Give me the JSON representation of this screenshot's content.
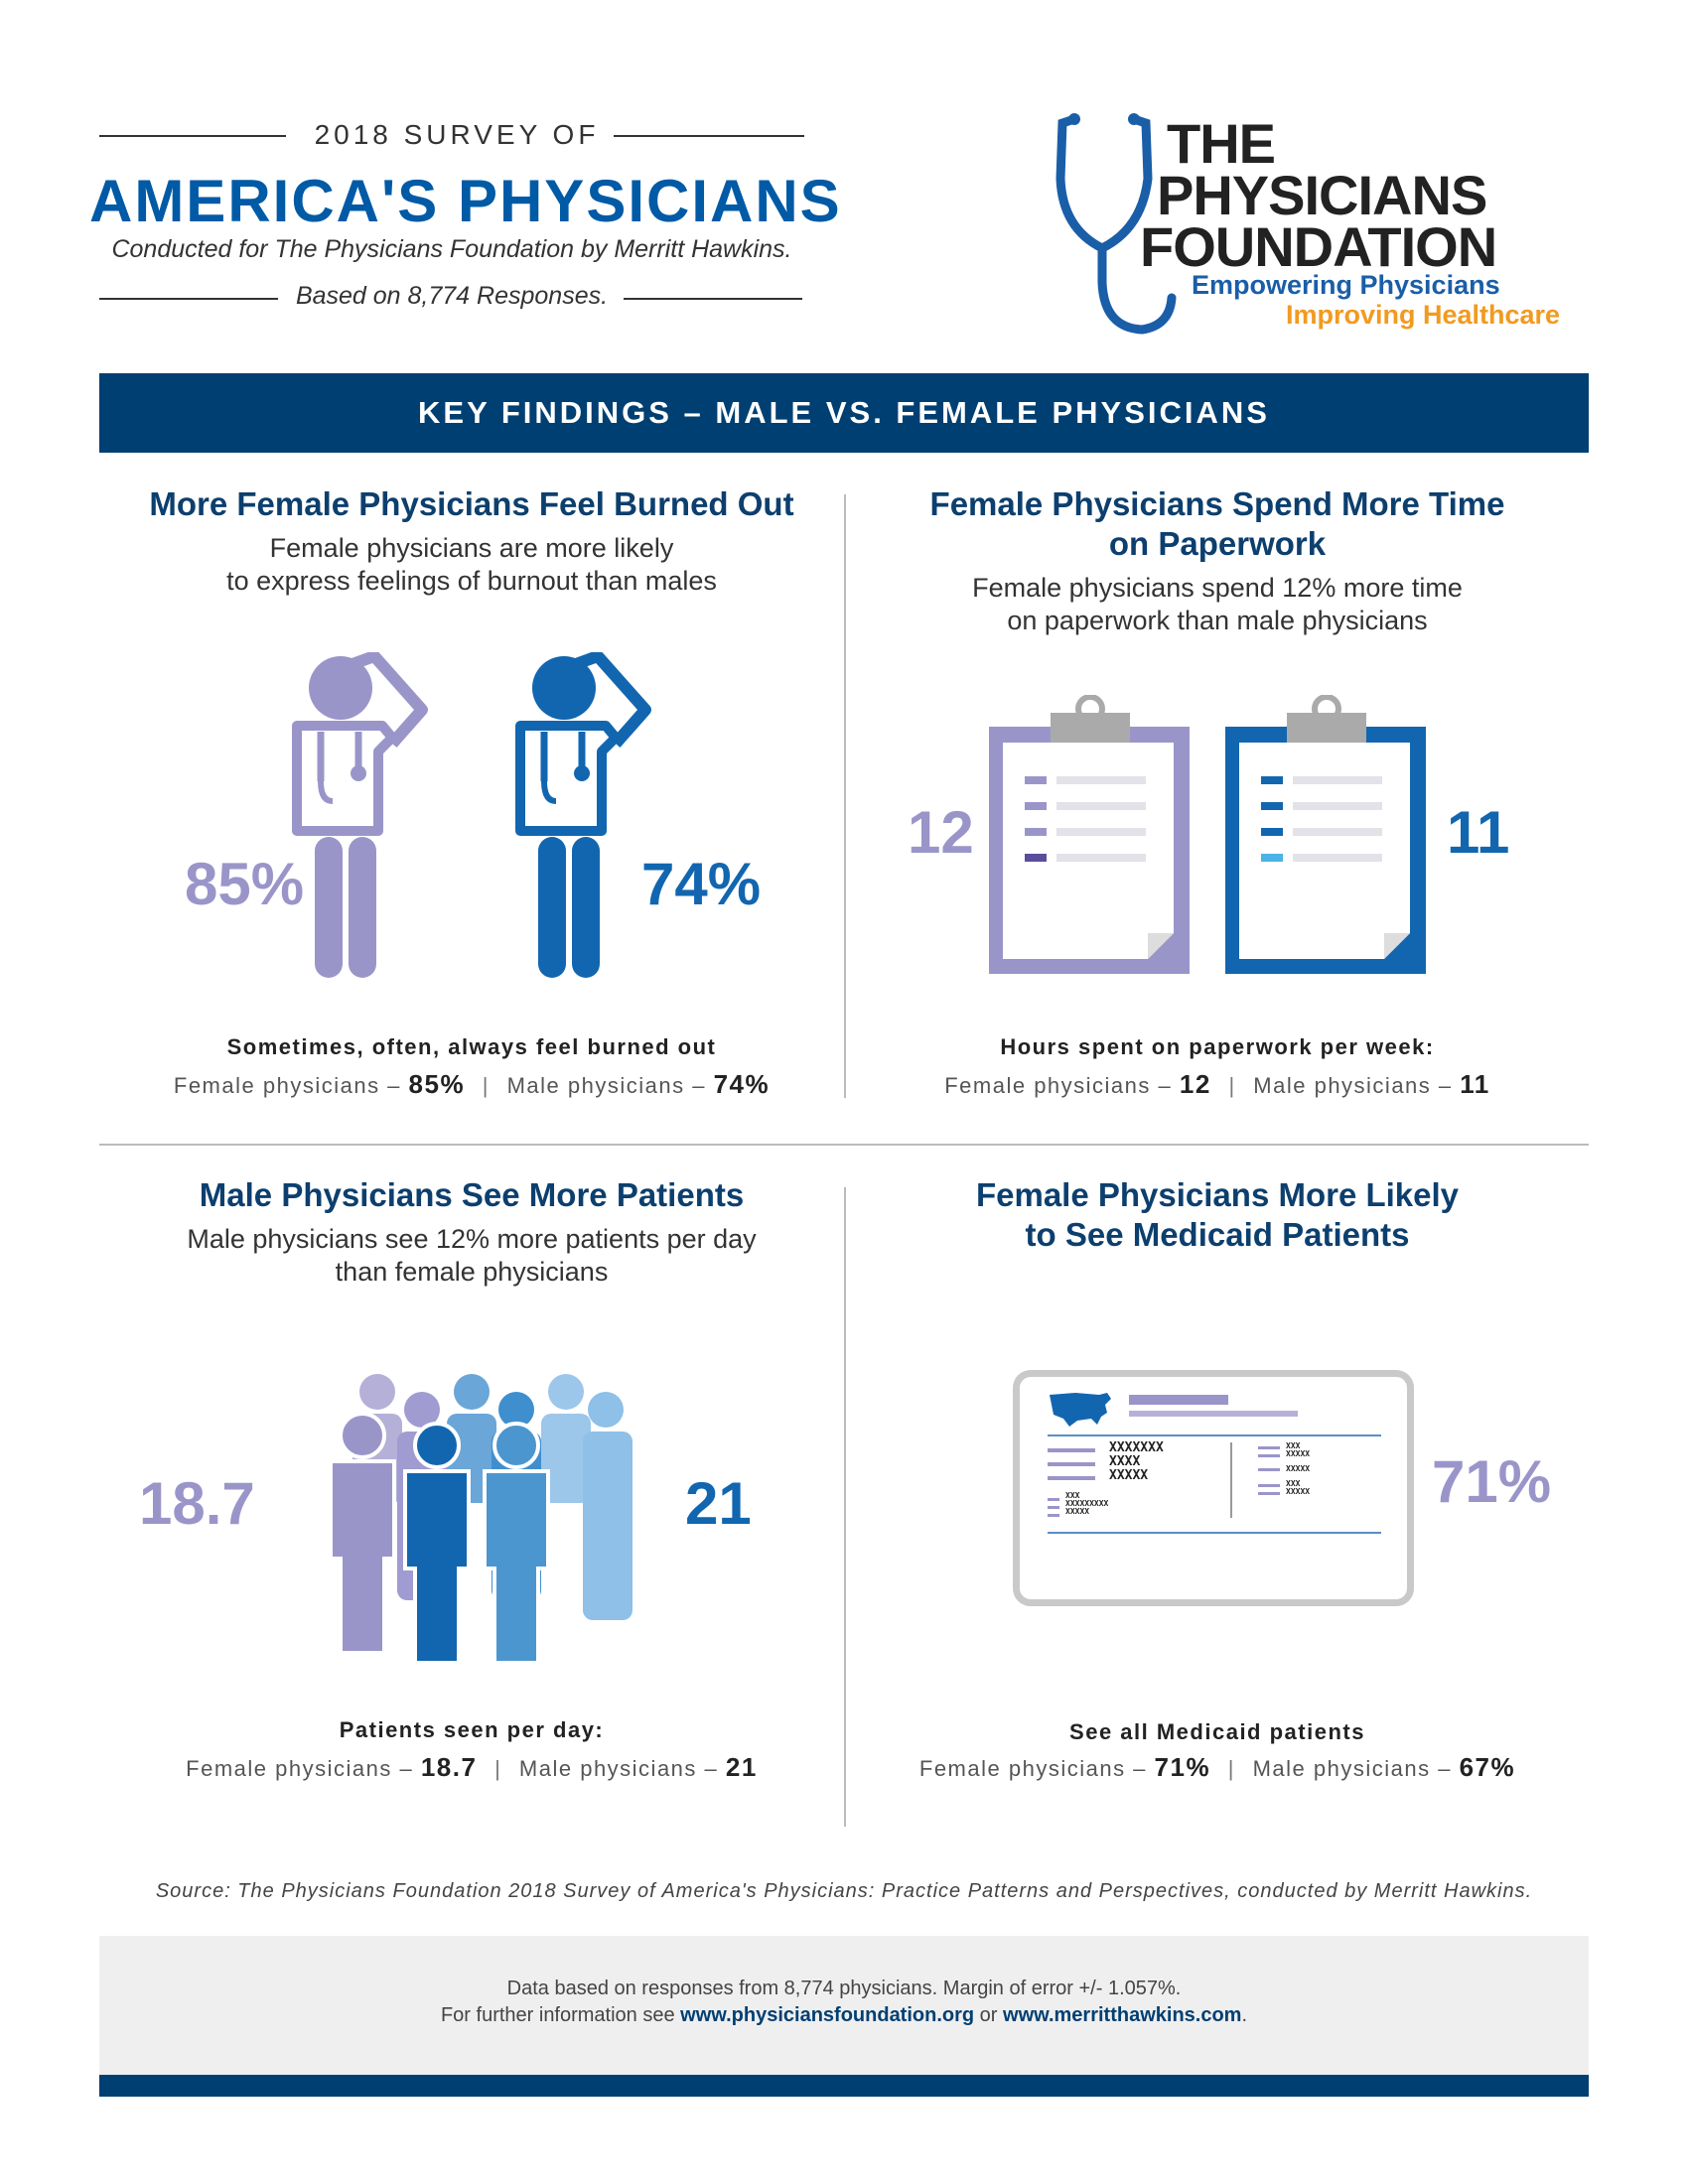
{
  "header": {
    "kicker": "2018 SURVEY OF",
    "title": "AMERICA'S PHYSICIANS",
    "conducted": "Conducted for The Physicians Foundation by Merritt Hawkins.",
    "responses": "Based on 8,774 Responses."
  },
  "logo": {
    "line1": "THE",
    "line2": "PHYSICIANS",
    "line3": "FOUNDATION",
    "tagline1": "Empowering Physicians",
    "tagline2": "Improving Healthcare",
    "colors": {
      "blue": "#1a5ea8",
      "orange": "#f29a20"
    }
  },
  "banner": "KEY FINDINGS – MALE VS. FEMALE PHYSICIANS",
  "colors": {
    "female": "#9a95c9",
    "male": "#1266b0",
    "navy": "#003f72"
  },
  "sections": {
    "burnout": {
      "title": "More Female Physicians Feel Burned Out",
      "desc_line1": "Female physicians are more likely",
      "desc_line2": "to express feelings of burnout than males",
      "female_big": "85%",
      "male_big": "74%",
      "caption": "Sometimes, often, always feel burned out",
      "female_label": "Female physicians –",
      "female_value": "85%",
      "male_label": "Male physicians –",
      "male_value": "74%",
      "icons": [
        "female-doctor-icon",
        "male-doctor-icon"
      ]
    },
    "paperwork": {
      "title_line1": "Female Physicians Spend More Time",
      "title_line2": "on Paperwork",
      "desc_line1": "Female physicians spend 12% more time",
      "desc_line2": "on paperwork than male physicians",
      "female_big": "12",
      "male_big": "11",
      "caption": "Hours spent on paperwork per week:",
      "female_label": "Female physicians –",
      "female_value": "12",
      "male_label": "Male physicians –",
      "male_value": "11",
      "icons": [
        "clipboard-icon"
      ]
    },
    "patients": {
      "title": "Male Physicians See More Patients",
      "desc_line1": "Male physicians see 12% more patients per day",
      "desc_line2": "than female physicians",
      "female_big": "18.7",
      "male_big": "21",
      "caption": "Patients seen per day:",
      "female_label": "Female physicians –",
      "female_value": "18.7",
      "male_label": "Male physicians –",
      "male_value": "21",
      "icons": [
        "people-crowd-icon"
      ]
    },
    "medicaid": {
      "title_line1": "Female Physicians More Likely",
      "title_line2": "to See Medicaid Patients",
      "big": "71%",
      "card": {
        "name": "XXXXXXX",
        "line2": "XXXX",
        "line3": "XXXXX",
        "small1": "XXX",
        "small2": "XXXXXXXXX",
        "small3": "XXXXX",
        "r1": "XXX",
        "r2": "XXXXX",
        "r3": "XXXXX",
        "r4": "XXX",
        "r5": "XXXXX"
      },
      "caption": "See all Medicaid patients",
      "female_label": "Female physicians –",
      "female_value": "71%",
      "male_label": "Male physicians –",
      "male_value": "67%",
      "icons": [
        "medicaid-card-icon",
        "usa-map-icon"
      ]
    }
  },
  "source": "Source: The Physicians Foundation 2018 Survey of America's Physicians: Practice Patterns and Perspectives, conducted by Merritt Hawkins.",
  "footer": {
    "line1": "Data based on responses from 8,774 physicians. Margin of error +/-  1.057%.",
    "line2_prefix": "For further information see",
    "link1": "www.physiciansfoundation.org",
    "or": "or",
    "link2": "www.merritthawkins.com",
    "period": "."
  }
}
